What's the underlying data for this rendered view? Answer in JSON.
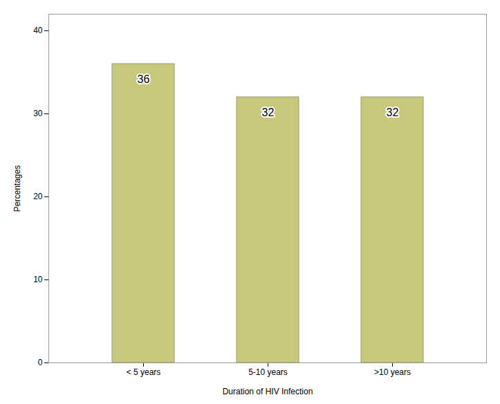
{
  "chart_data": {
    "type": "bar",
    "categories": [
      "< 5 years",
      "5-10 years",
      ">10 years"
    ],
    "values": [
      36,
      32,
      32
    ],
    "color": "#C8C87D",
    "xlabel": "Duration of HIV Infection",
    "ylabel": "Percentages",
    "ylim": [
      0,
      42
    ],
    "yticks": [
      0,
      10,
      20,
      30,
      40
    ],
    "grid": false,
    "data_labels": true
  }
}
